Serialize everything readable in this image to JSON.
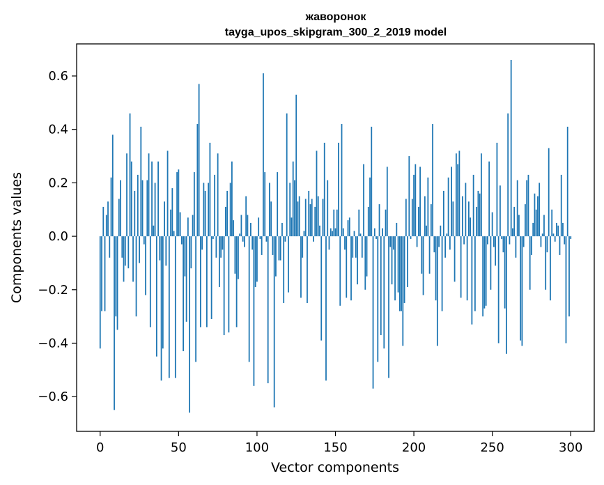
{
  "chart_data": {
    "type": "bar",
    "title_line1": "жаворонок",
    "title_line2": "tayga_upos_skipgram_300_2_2019 model",
    "xlabel": "Vector components",
    "ylabel": "Components values",
    "xlim": [
      -15,
      315
    ],
    "ylim": [
      -0.73,
      0.72
    ],
    "x_ticks": [
      0,
      50,
      100,
      150,
      200,
      250,
      300
    ],
    "x_tick_labels": [
      "0",
      "50",
      "100",
      "150",
      "200",
      "250",
      "300"
    ],
    "y_ticks": [
      -0.6,
      -0.4,
      -0.2,
      0.0,
      0.2,
      0.4,
      0.6
    ],
    "y_tick_labels": [
      "−0.6",
      "−0.4",
      "−0.2",
      "0.0",
      "0.2",
      "0.4",
      "0.6"
    ],
    "bar_color": "#1f77b4",
    "grid": false,
    "x_start": 0,
    "values": [
      -0.42,
      -0.28,
      0.11,
      -0.28,
      0.08,
      0.13,
      -0.08,
      0.22,
      0.38,
      -0.65,
      -0.3,
      -0.35,
      0.14,
      0.21,
      -0.08,
      -0.17,
      -0.11,
      0.31,
      -0.12,
      0.46,
      0.28,
      -0.17,
      0.17,
      -0.3,
      0.23,
      -0.1,
      0.41,
      0.21,
      -0.03,
      -0.22,
      0.21,
      0.31,
      -0.34,
      0.28,
      0.04,
      0.2,
      -0.45,
      0.28,
      -0.09,
      -0.54,
      -0.42,
      0.13,
      -0.11,
      0.32,
      -0.53,
      0.1,
      0.18,
      0.02,
      -0.53,
      0.24,
      0.25,
      0.09,
      -0.03,
      -0.43,
      -0.15,
      -0.32,
      0.07,
      -0.66,
      -0.12,
      0.08,
      0.24,
      -0.47,
      0.42,
      0.57,
      -0.34,
      -0.05,
      0.2,
      0.17,
      -0.34,
      0.2,
      0.35,
      -0.31,
      -0.01,
      0.23,
      -0.08,
      0.31,
      -0.19,
      -0.08,
      -0.05,
      -0.37,
      0.11,
      0.17,
      -0.36,
      0.2,
      0.28,
      0.06,
      -0.14,
      -0.34,
      -0.16,
      0.01,
      0.08,
      -0.02,
      -0.04,
      0.15,
      0.08,
      -0.47,
      0.05,
      -0.05,
      -0.56,
      -0.19,
      -0.17,
      0.07,
      -0.01,
      -0.07,
      0.61,
      0.24,
      -0.02,
      -0.55,
      0.2,
      0.13,
      -0.07,
      -0.64,
      -0.15,
      0.24,
      -0.09,
      -0.09,
      0.05,
      -0.25,
      -0.02,
      0.46,
      -0.21,
      0.2,
      0.07,
      0.28,
      0.21,
      0.53,
      0.13,
      0.15,
      -0.23,
      -0.08,
      0.02,
      0.14,
      -0.25,
      0.17,
      0.12,
      0.14,
      -0.02,
      0.11,
      0.32,
      0.15,
      0.04,
      -0.39,
      0.14,
      0.35,
      -0.54,
      0.21,
      -0.05,
      0.03,
      0.02,
      0.1,
      0.03,
      0.1,
      0.35,
      -0.26,
      0.42,
      0.03,
      -0.05,
      -0.23,
      0.06,
      0.07,
      -0.24,
      -0.08,
      0.02,
      -0.08,
      -0.18,
      0.1,
      0.01,
      -0.08,
      0.27,
      -0.2,
      -0.15,
      0.11,
      0.22,
      0.41,
      -0.57,
      0.03,
      -0.01,
      -0.47,
      0.12,
      -0.37,
      0.03,
      -0.42,
      0.1,
      0.26,
      -0.53,
      -0.04,
      -0.18,
      -0.05,
      -0.24,
      0.05,
      -0.21,
      -0.28,
      -0.28,
      -0.41,
      -0.25,
      0.14,
      -0.19,
      0.3,
      -0.01,
      0.14,
      0.23,
      0.27,
      -0.04,
      0.11,
      0.26,
      -0.14,
      -0.22,
      0.15,
      0.04,
      0.22,
      -0.14,
      0.12,
      0.42,
      -0.06,
      -0.24,
      -0.41,
      -0.04,
      0.04,
      -0.28,
      0.17,
      -0.08,
      0.01,
      0.22,
      -0.05,
      0.26,
      0.13,
      -0.17,
      0.31,
      0.27,
      0.32,
      -0.23,
      0.15,
      -0.03,
      0.2,
      -0.24,
      0.13,
      0.07,
      -0.33,
      0.23,
      -0.28,
      0.11,
      0.17,
      0.16,
      0.31,
      -0.3,
      -0.27,
      -0.26,
      -0.03,
      0.28,
      -0.2,
      0.09,
      -0.04,
      -0.11,
      0.35,
      -0.4,
      0.19,
      -0.01,
      -0.06,
      -0.27,
      -0.44,
      0.46,
      -0.03,
      0.66,
      0.03,
      0.11,
      -0.08,
      0.21,
      0.08,
      -0.39,
      -0.41,
      -0.04,
      0.12,
      0.21,
      0.23,
      -0.2,
      -0.07,
      0.05,
      0.16,
      0.1,
      0.15,
      0.2,
      -0.04,
      0.01,
      0.08,
      -0.2,
      -0.06,
      0.33,
      -0.24,
      0.1,
      0.01,
      -0.02,
      0.05,
      0.04,
      -0.07,
      0.23,
      0.05,
      -0.03,
      -0.4,
      0.41,
      -0.3,
      -0.01
    ]
  }
}
